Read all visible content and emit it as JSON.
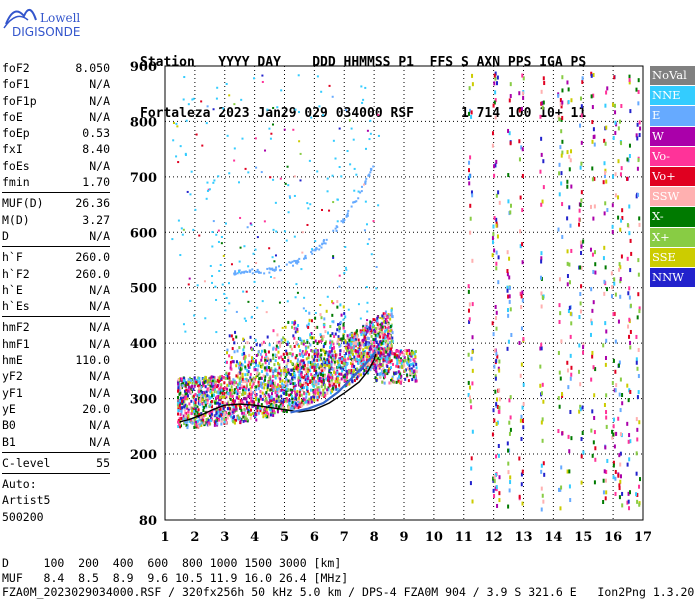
{
  "logo": {
    "line1": "Lowell",
    "line2": "DIGISONDE"
  },
  "header": {
    "labels": [
      "Station",
      "YYYY",
      "DAY",
      "DDD",
      "HHMMSS",
      "P1",
      "FFS",
      "S",
      "AXN",
      "PPS",
      "IGA",
      "PS"
    ],
    "values": [
      "Fortaleza",
      "2023",
      "Jan29",
      "029",
      "034000",
      "RSF",
      "1",
      "714",
      "100",
      "10+",
      "11"
    ]
  },
  "params_group1": [
    {
      "name": "foF2",
      "value": "8.050"
    },
    {
      "name": "foF1",
      "value": "N/A"
    },
    {
      "name": "foF1p",
      "value": "N/A"
    },
    {
      "name": "foE",
      "value": "N/A"
    },
    {
      "name": "foEp",
      "value": "0.53"
    },
    {
      "name": "fxI",
      "value": "8.40"
    },
    {
      "name": "foEs",
      "value": "N/A"
    },
    {
      "name": "fmin",
      "value": "1.70"
    }
  ],
  "params_group2": [
    {
      "name": "MUF(D)",
      "value": "26.36"
    },
    {
      "name": "M(D)",
      "value": "3.27"
    },
    {
      "name": "D",
      "value": "N/A"
    }
  ],
  "params_group3": [
    {
      "name": "h`F",
      "value": "260.0"
    },
    {
      "name": "h`F2",
      "value": "260.0"
    },
    {
      "name": "h`E",
      "value": "N/A"
    },
    {
      "name": "h`Es",
      "value": "N/A"
    }
  ],
  "params_group4": [
    {
      "name": "hmF2",
      "value": "N/A"
    },
    {
      "name": "hmF1",
      "value": "N/A"
    },
    {
      "name": "hmE",
      "value": "110.0"
    },
    {
      "name": "yF2",
      "value": "N/A"
    },
    {
      "name": "yF1",
      "value": "N/A"
    },
    {
      "name": "yE",
      "value": "20.0"
    },
    {
      "name": "B0",
      "value": "N/A"
    },
    {
      "name": "B1",
      "value": "N/A"
    }
  ],
  "params_group5": [
    {
      "name": "C-level",
      "value": "55"
    }
  ],
  "auto_info": [
    "Auto:",
    "Artist5",
    "500200"
  ],
  "legend": [
    {
      "label": "NoVal",
      "color": "#808080"
    },
    {
      "label": "NNE",
      "color": "#33ccff"
    },
    {
      "label": "E",
      "color": "#66aaff"
    },
    {
      "label": "W",
      "color": "#aa00aa"
    },
    {
      "label": "Vo-",
      "color": "#ff3399"
    },
    {
      "label": "Vo+",
      "color": "#e00020"
    },
    {
      "label": "SSW",
      "color": "#ffb0b0"
    },
    {
      "label": "X-",
      "color": "#007a00"
    },
    {
      "label": "X+",
      "color": "#88cc44"
    },
    {
      "label": "SSE",
      "color": "#cccc00"
    },
    {
      "label": "NNW",
      "color": "#2222cc"
    }
  ],
  "bottom": {
    "line1": "D     100  200  400  600  800 1000 1500 3000 [km]",
    "line2": "MUF   8.4  8.5  8.9  9.6 10.5 11.9 16.0 26.4 [MHz]",
    "line3": "FZA0M_2023029034000.RSF / 320fx256h 50 kHz 5.0 km / DPS-4 FZA0M 904 / 3.9 S 321.6 E   Ion2Png 1.3.20"
  },
  "chart_data": {
    "type": "scatter",
    "title": "",
    "xlabel": "",
    "ylabel": "",
    "xlim": [
      1,
      17
    ],
    "ylim": [
      80,
      900
    ],
    "x_ticks": [
      1,
      2,
      3,
      4,
      5,
      6,
      7,
      8,
      9,
      10,
      11,
      12,
      13,
      14,
      15,
      16,
      17
    ],
    "y_ticks": [
      80,
      200,
      300,
      400,
      500,
      600,
      700,
      800,
      900
    ],
    "grid": true,
    "series": [
      {
        "name": "trace",
        "x": [
          1.5,
          1.8,
          2.2,
          2.6,
          3.0,
          3.5,
          4.0,
          4.5,
          5.0,
          5.5,
          6.0,
          6.5,
          7.0,
          7.5,
          7.8,
          8.0,
          8.05
        ],
        "y": [
          258,
          262,
          270,
          280,
          288,
          290,
          288,
          284,
          280,
          276,
          280,
          292,
          310,
          330,
          350,
          370,
          380
        ]
      },
      {
        "name": "trace",
        "x": [
          5.2,
          5.8,
          6.3,
          6.8,
          7.2,
          7.6,
          7.9,
          8.05
        ],
        "y": [
          275,
          282,
          292,
          312,
          334,
          356,
          374,
          385
        ]
      }
    ]
  }
}
